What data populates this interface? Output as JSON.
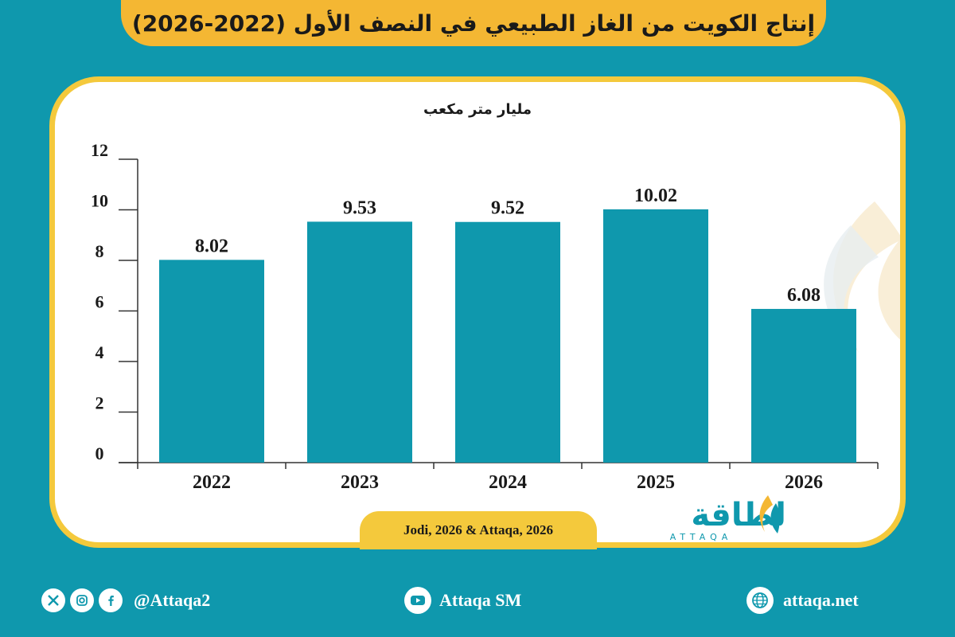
{
  "title": "إنتاج الكويت من الغاز الطبيعي في النصف الأول (2022-2026)",
  "chart_data": {
    "type": "bar",
    "unit_label": "مليار متر مكعب",
    "categories": [
      "2022",
      "2023",
      "2024",
      "2025",
      "2026"
    ],
    "values": [
      8.02,
      9.53,
      9.52,
      10.02,
      6.08
    ],
    "value_labels": [
      "8.02",
      "9.53",
      "9.52",
      "10.02",
      "6.08"
    ],
    "yticks": [
      "0",
      "2",
      "4",
      "6",
      "8",
      "10",
      "12"
    ],
    "ylim": [
      0,
      12
    ],
    "bar_color": "#0f98ad"
  },
  "source": "Jodi, 2026 & Attaqa, 2026",
  "logo": {
    "arabic": "الطاقة",
    "latin": "ATTAQA"
  },
  "footer": {
    "social_handle": "@Attaqa2",
    "youtube": "Attaqa SM",
    "website": "attaqa.net",
    "icons": [
      "x-icon",
      "instagram-icon",
      "facebook-icon",
      "youtube-icon",
      "globe-icon"
    ]
  }
}
